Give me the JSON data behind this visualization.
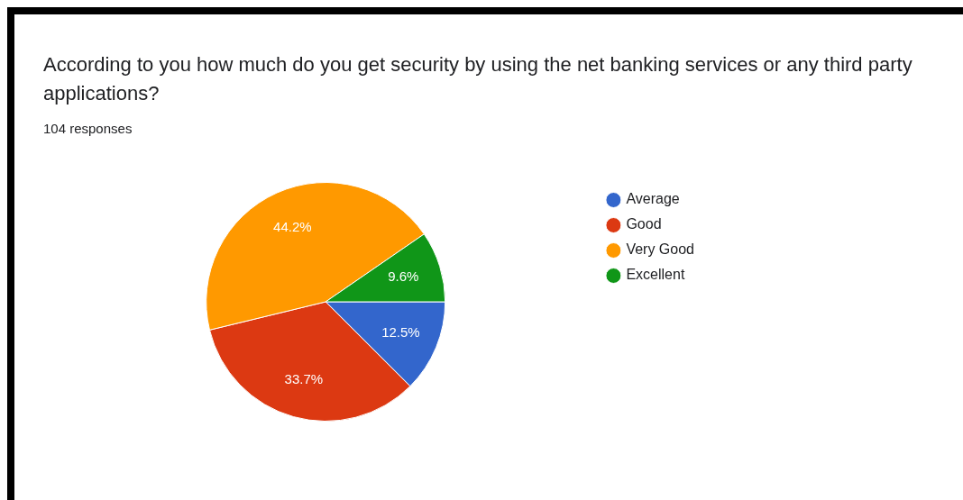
{
  "chart_data": {
    "type": "pie",
    "title": "According to you how much do you get security by using the net banking services or any third party applications?",
    "subtitle": "104 responses",
    "categories": [
      "Average",
      "Good",
      "Very Good",
      "Excellent"
    ],
    "values": [
      12.5,
      33.7,
      44.2,
      9.6
    ],
    "colors": [
      "#3366cc",
      "#dc3912",
      "#ff9900",
      "#109618"
    ],
    "value_labels": [
      "12.5%",
      "33.7%",
      "44.2%",
      "9.6%"
    ],
    "legend": "right"
  }
}
